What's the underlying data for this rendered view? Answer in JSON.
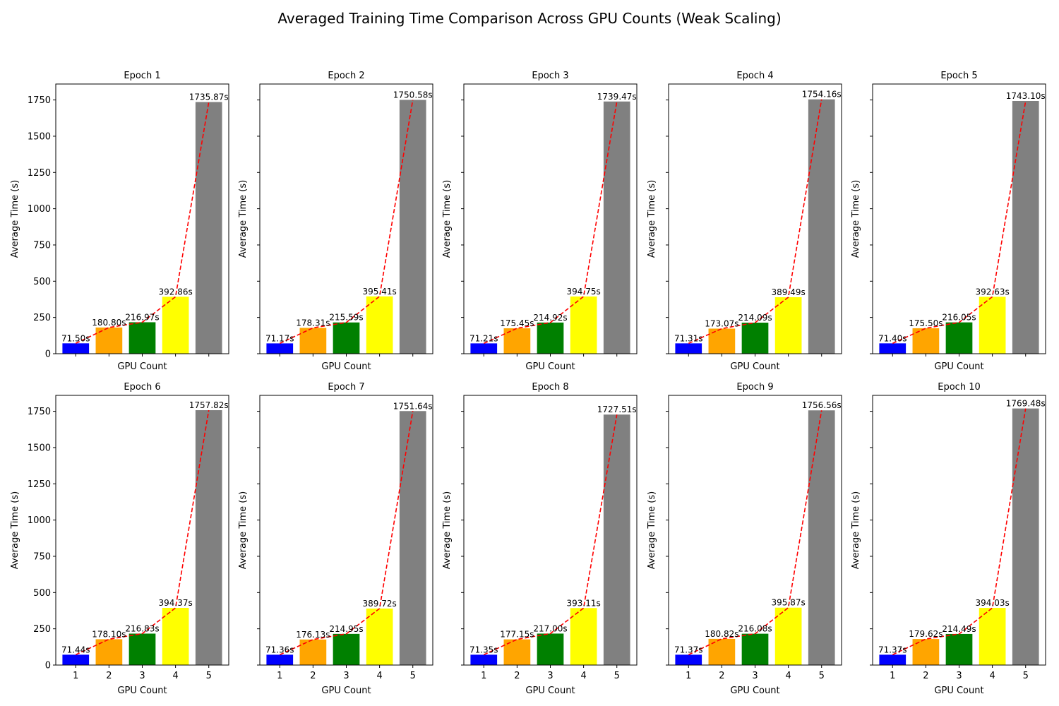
{
  "figure": {
    "title": "Averaged Training Time Comparison Across GPU Counts (Weak Scaling)"
  },
  "colors": {
    "bars": [
      "#0000ff",
      "#ffa500",
      "#008000",
      "#ffff00",
      "#808080"
    ],
    "trend_line": "#ff0000"
  },
  "chart_data": [
    {
      "type": "bar",
      "title": "Epoch 1",
      "xlabel": "GPU Count",
      "ylabel": "Average Time (s)",
      "categories": [
        "1",
        "2",
        "3",
        "4",
        "5"
      ],
      "values": [
        71.5,
        180.8,
        216.97,
        392.86,
        1735.87
      ],
      "labels": [
        "71.50s",
        "180.80s",
        "216.97s",
        "392.86s",
        "1735.87s"
      ],
      "ylim": [
        0,
        1860
      ],
      "yticks": [
        0,
        250,
        500,
        750,
        1000,
        1250,
        1500,
        1750
      ],
      "show_xticklabels": false,
      "show_yticklabels": true
    },
    {
      "type": "bar",
      "title": "Epoch 2",
      "xlabel": "GPU Count",
      "ylabel": "Average Time (s)",
      "categories": [
        "1",
        "2",
        "3",
        "4",
        "5"
      ],
      "values": [
        71.17,
        178.31,
        215.59,
        395.41,
        1750.58
      ],
      "labels": [
        "71.17s",
        "178.31s",
        "215.59s",
        "395.41s",
        "1750.58s"
      ],
      "ylim": [
        0,
        1860
      ],
      "yticks": [
        0,
        250,
        500,
        750,
        1000,
        1250,
        1500,
        1750
      ],
      "show_xticklabels": false,
      "show_yticklabels": false
    },
    {
      "type": "bar",
      "title": "Epoch 3",
      "xlabel": "GPU Count",
      "ylabel": "Average Time (s)",
      "categories": [
        "1",
        "2",
        "3",
        "4",
        "5"
      ],
      "values": [
        71.21,
        175.45,
        214.92,
        394.75,
        1739.47
      ],
      "labels": [
        "71.21s",
        "175.45s",
        "214.92s",
        "394.75s",
        "1739.47s"
      ],
      "ylim": [
        0,
        1860
      ],
      "yticks": [
        0,
        250,
        500,
        750,
        1000,
        1250,
        1500,
        1750
      ],
      "show_xticklabels": false,
      "show_yticklabels": false
    },
    {
      "type": "bar",
      "title": "Epoch 4",
      "xlabel": "GPU Count",
      "ylabel": "Average Time (s)",
      "categories": [
        "1",
        "2",
        "3",
        "4",
        "5"
      ],
      "values": [
        71.31,
        173.07,
        214.09,
        389.49,
        1754.16
      ],
      "labels": [
        "71.31s",
        "173.07s",
        "214.09s",
        "389.49s",
        "1754.16s"
      ],
      "ylim": [
        0,
        1860
      ],
      "yticks": [
        0,
        250,
        500,
        750,
        1000,
        1250,
        1500,
        1750
      ],
      "show_xticklabels": false,
      "show_yticklabels": false
    },
    {
      "type": "bar",
      "title": "Epoch 5",
      "xlabel": "GPU Count",
      "ylabel": "Average Time (s)",
      "categories": [
        "1",
        "2",
        "3",
        "4",
        "5"
      ],
      "values": [
        71.4,
        175.5,
        216.05,
        392.63,
        1743.1
      ],
      "labels": [
        "71.40s",
        "175.50s",
        "216.05s",
        "392.63s",
        "1743.10s"
      ],
      "ylim": [
        0,
        1860
      ],
      "yticks": [
        0,
        250,
        500,
        750,
        1000,
        1250,
        1500,
        1750
      ],
      "show_xticklabels": false,
      "show_yticklabels": false
    },
    {
      "type": "bar",
      "title": "Epoch 6",
      "xlabel": "GPU Count",
      "ylabel": "Average Time (s)",
      "categories": [
        "1",
        "2",
        "3",
        "4",
        "5"
      ],
      "values": [
        71.44,
        178.1,
        216.83,
        394.37,
        1757.82
      ],
      "labels": [
        "71.44s",
        "178.10s",
        "216.83s",
        "394.37s",
        "1757.82s"
      ],
      "ylim": [
        0,
        1860
      ],
      "yticks": [
        0,
        250,
        500,
        750,
        1000,
        1250,
        1500,
        1750
      ],
      "show_xticklabels": true,
      "show_yticklabels": true
    },
    {
      "type": "bar",
      "title": "Epoch 7",
      "xlabel": "GPU Count",
      "ylabel": "Average Time (s)",
      "categories": [
        "1",
        "2",
        "3",
        "4",
        "5"
      ],
      "values": [
        71.36,
        176.13,
        214.95,
        389.72,
        1751.64
      ],
      "labels": [
        "71.36s",
        "176.13s",
        "214.95s",
        "389.72s",
        "1751.64s"
      ],
      "ylim": [
        0,
        1860
      ],
      "yticks": [
        0,
        250,
        500,
        750,
        1000,
        1250,
        1500,
        1750
      ],
      "show_xticklabels": true,
      "show_yticklabels": false
    },
    {
      "type": "bar",
      "title": "Epoch 8",
      "xlabel": "GPU Count",
      "ylabel": "Average Time (s)",
      "categories": [
        "1",
        "2",
        "3",
        "4",
        "5"
      ],
      "values": [
        71.35,
        177.15,
        217.0,
        393.11,
        1727.51
      ],
      "labels": [
        "71.35s",
        "177.15s",
        "217.00s",
        "393.11s",
        "1727.51s"
      ],
      "ylim": [
        0,
        1860
      ],
      "yticks": [
        0,
        250,
        500,
        750,
        1000,
        1250,
        1500,
        1750
      ],
      "show_xticklabels": true,
      "show_yticklabels": false
    },
    {
      "type": "bar",
      "title": "Epoch 9",
      "xlabel": "GPU Count",
      "ylabel": "Average Time (s)",
      "categories": [
        "1",
        "2",
        "3",
        "4",
        "5"
      ],
      "values": [
        71.37,
        180.82,
        216.08,
        395.87,
        1756.56
      ],
      "labels": [
        "71.37s",
        "180.82s",
        "216.08s",
        "395.87s",
        "1756.56s"
      ],
      "ylim": [
        0,
        1860
      ],
      "yticks": [
        0,
        250,
        500,
        750,
        1000,
        1250,
        1500,
        1750
      ],
      "show_xticklabels": true,
      "show_yticklabels": false
    },
    {
      "type": "bar",
      "title": "Epoch 10",
      "xlabel": "GPU Count",
      "ylabel": "Average Time (s)",
      "categories": [
        "1",
        "2",
        "3",
        "4",
        "5"
      ],
      "values": [
        71.37,
        179.62,
        214.49,
        394.03,
        1769.48
      ],
      "labels": [
        "71.37s",
        "179.62s",
        "214.49s",
        "394.03s",
        "1769.48s"
      ],
      "ylim": [
        0,
        1860
      ],
      "yticks": [
        0,
        250,
        500,
        750,
        1000,
        1250,
        1500,
        1750
      ],
      "show_xticklabels": true,
      "show_yticklabels": false
    }
  ]
}
